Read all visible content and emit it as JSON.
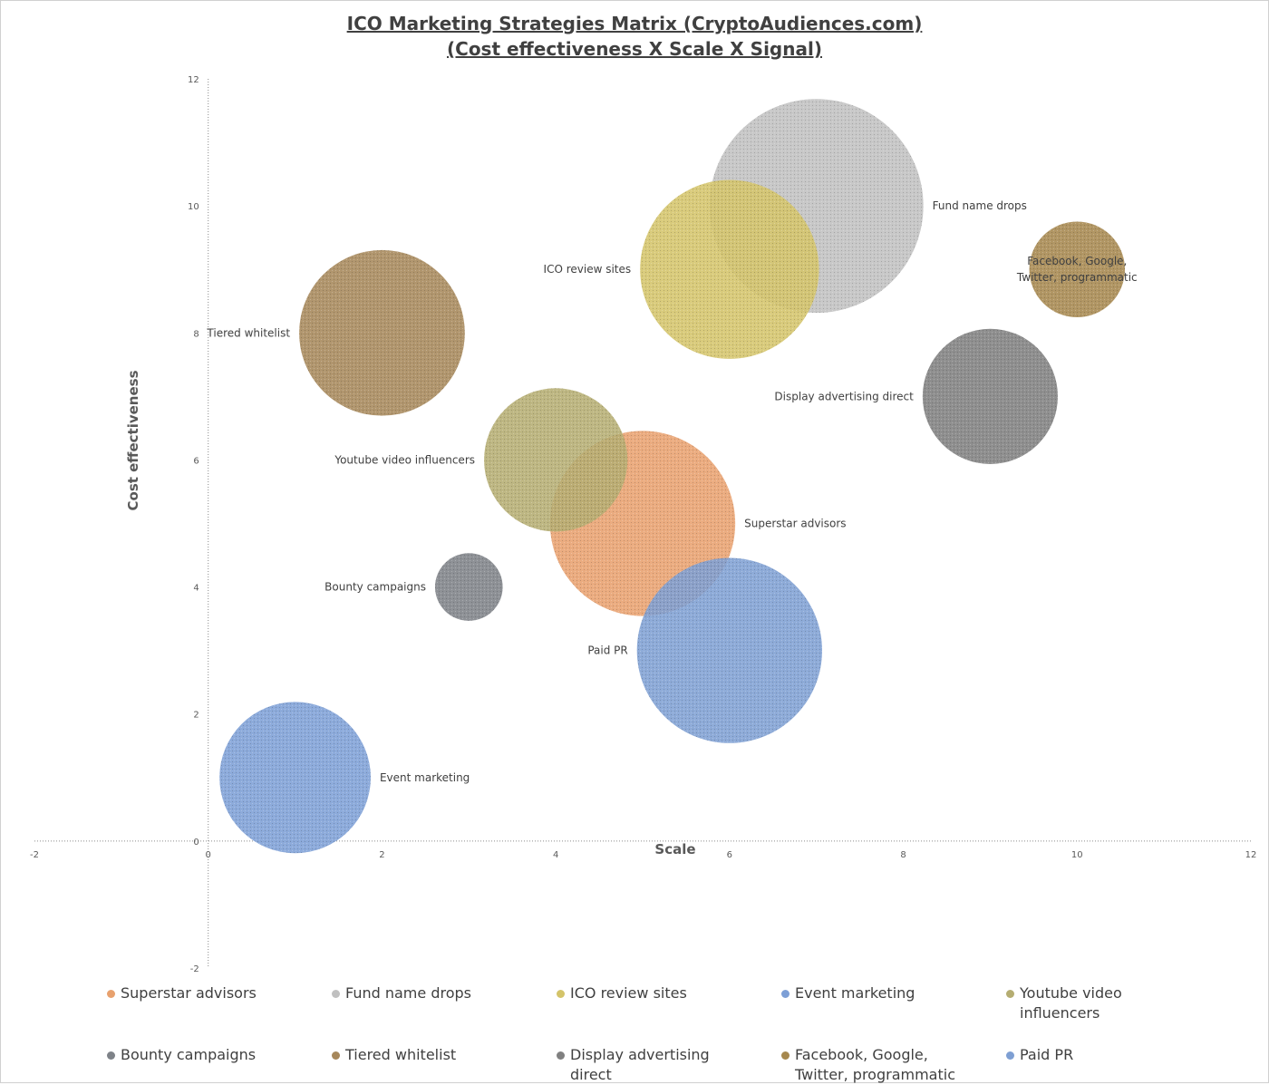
{
  "title": {
    "line1": "ICO Marketing Strategies Matrix (CryptoAudiences.com)",
    "line2": "(Cost effectiveness X Scale X Signal)"
  },
  "chart_data": {
    "type": "bubble",
    "xlabel": "Scale",
    "ylabel": "Cost effectiveness",
    "xlim": [
      -2,
      12
    ],
    "ylim": [
      -2,
      12
    ],
    "x_ticks": [
      -2,
      0,
      2,
      4,
      6,
      8,
      10,
      12
    ],
    "y_ticks": [
      -2,
      0,
      2,
      4,
      6,
      8,
      10,
      12
    ],
    "grid": false,
    "legend_position": "bottom",
    "series": [
      {
        "name": "Superstar advisors",
        "x": 5,
        "y": 5,
        "size": 7.5,
        "color": "#e8a16e",
        "label_side": "right"
      },
      {
        "name": "Fund name drops",
        "x": 7,
        "y": 10,
        "size": 10,
        "color": "#c0c0c0",
        "label_side": "right"
      },
      {
        "name": "ICO review sites",
        "x": 6,
        "y": 9,
        "size": 7,
        "color": "#d4c46a",
        "label_side": "left"
      },
      {
        "name": "Event marketing",
        "x": 1,
        "y": 1,
        "size": 5,
        "color": "#7d9fd6",
        "label_side": "right"
      },
      {
        "name": "Youtube video influencers",
        "x": 4,
        "y": 6,
        "size": 4.5,
        "color": "#b5ad72",
        "label_side": "left"
      },
      {
        "name": "Bounty campaigns",
        "x": 3,
        "y": 4,
        "size": 1,
        "color": "#7e8288",
        "label_side": "left"
      },
      {
        "name": "Tiered whitelist",
        "x": 2,
        "y": 8,
        "size": 6,
        "color": "#a6875a",
        "label_side": "left"
      },
      {
        "name": "Display advertising direct",
        "x": 9,
        "y": 7,
        "size": 4,
        "color": "#808080",
        "label_side": "left"
      },
      {
        "name": "Facebook, Google, Twitter, programmatic",
        "x": 10,
        "y": 9,
        "size": 2,
        "color": "#a6884e",
        "label_side": "center",
        "label_lines": [
          "Facebook, Google,",
          "Twitter, programmatic"
        ]
      },
      {
        "name": "Paid PR",
        "x": 6,
        "y": 3,
        "size": 7.5,
        "color": "#7e9fd3",
        "label_side": "left"
      }
    ]
  }
}
